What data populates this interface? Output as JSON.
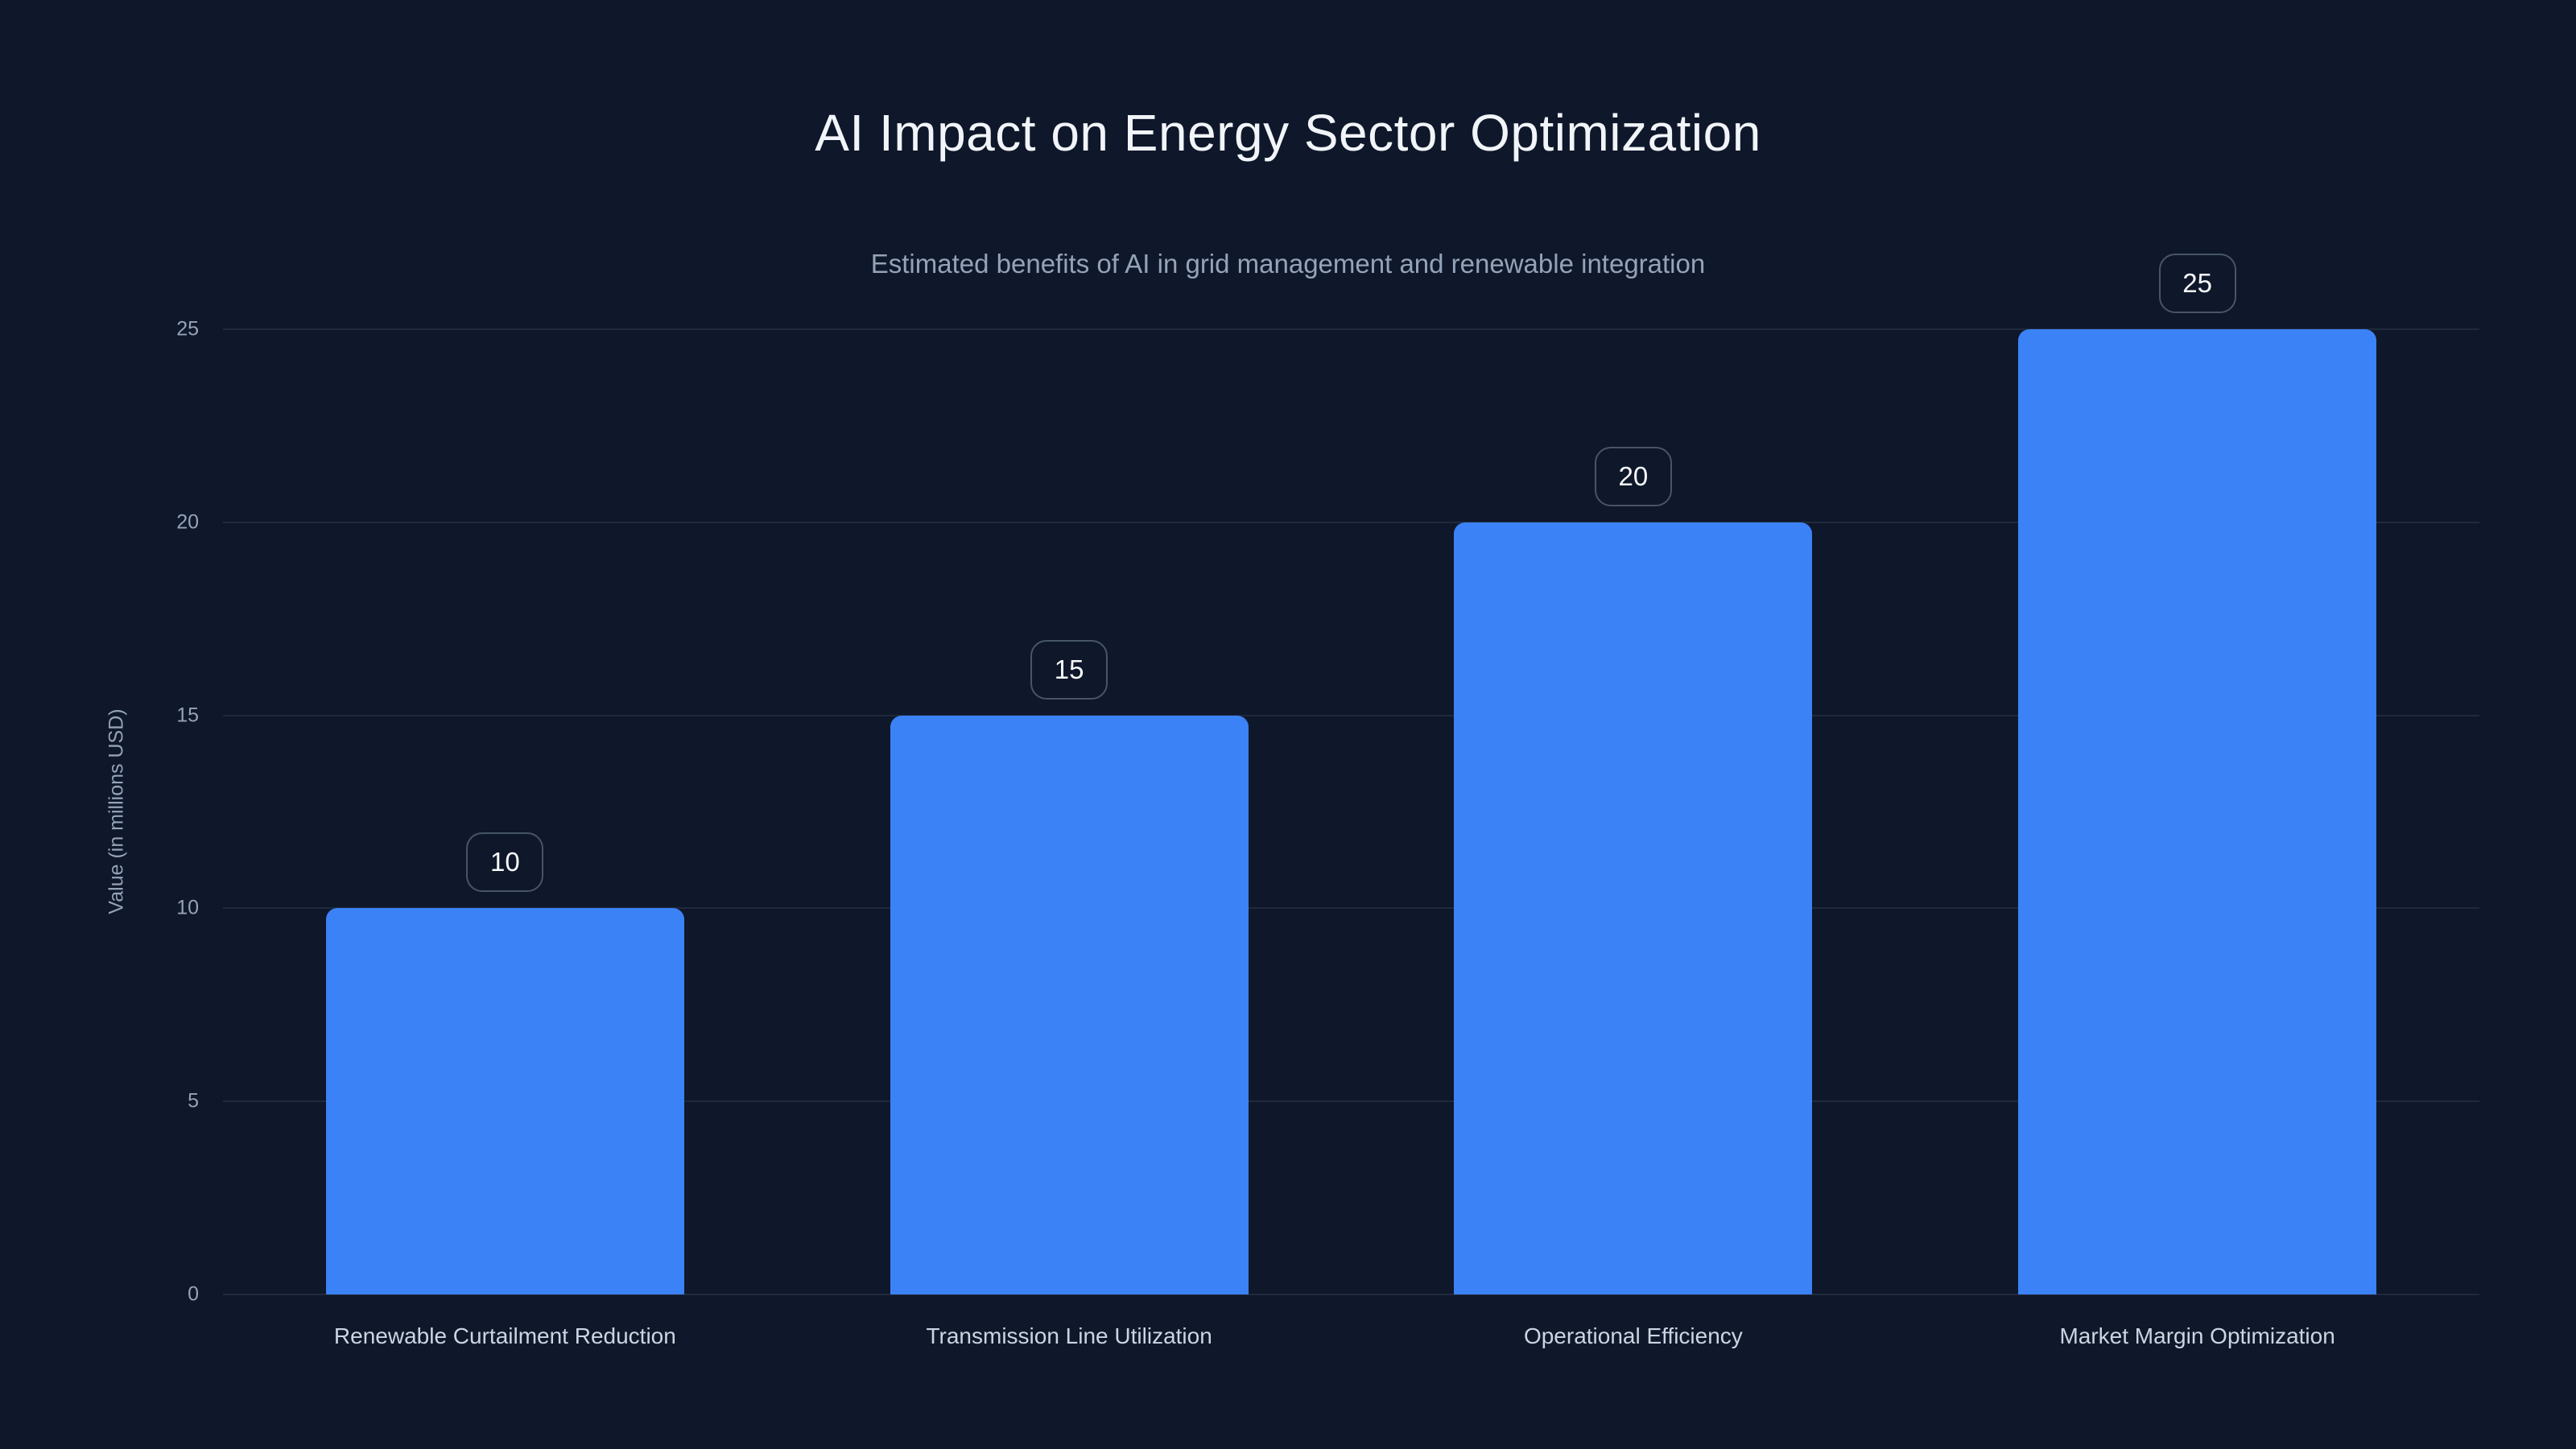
{
  "page": {
    "title": "AI Impact on Energy Sector Optimization",
    "subtitle": "Estimated benefits of AI in grid management and renewable integration"
  },
  "chart_data": {
    "type": "bar",
    "title": "AI Impact on Energy Sector Optimization",
    "subtitle": "Estimated benefits of AI in grid management and renewable integration",
    "categories": [
      "Renewable Curtailment Reduction",
      "Transmission Line Utilization",
      "Operational Efficiency",
      "Market Margin Optimization"
    ],
    "values": [
      10,
      15,
      20,
      25
    ],
    "data_labels": [
      "10",
      "15",
      "20",
      "25"
    ],
    "xlabel": "",
    "ylabel": "Value (in millions USD)",
    "ylim": [
      0,
      25
    ],
    "yticks": [
      0,
      5,
      10,
      15,
      20,
      25
    ],
    "grid": true,
    "legend": false,
    "colors": {
      "background": "#0f172a",
      "bar": "#3b82f6",
      "gridline": "#1f2a3c",
      "title": "#f1f5f9",
      "subtitle": "#94a3b8",
      "tick_label": "#94a3b8",
      "category_label": "#cbd5e1",
      "badge_border": "#475569",
      "badge_text": "#f8fafc"
    }
  }
}
